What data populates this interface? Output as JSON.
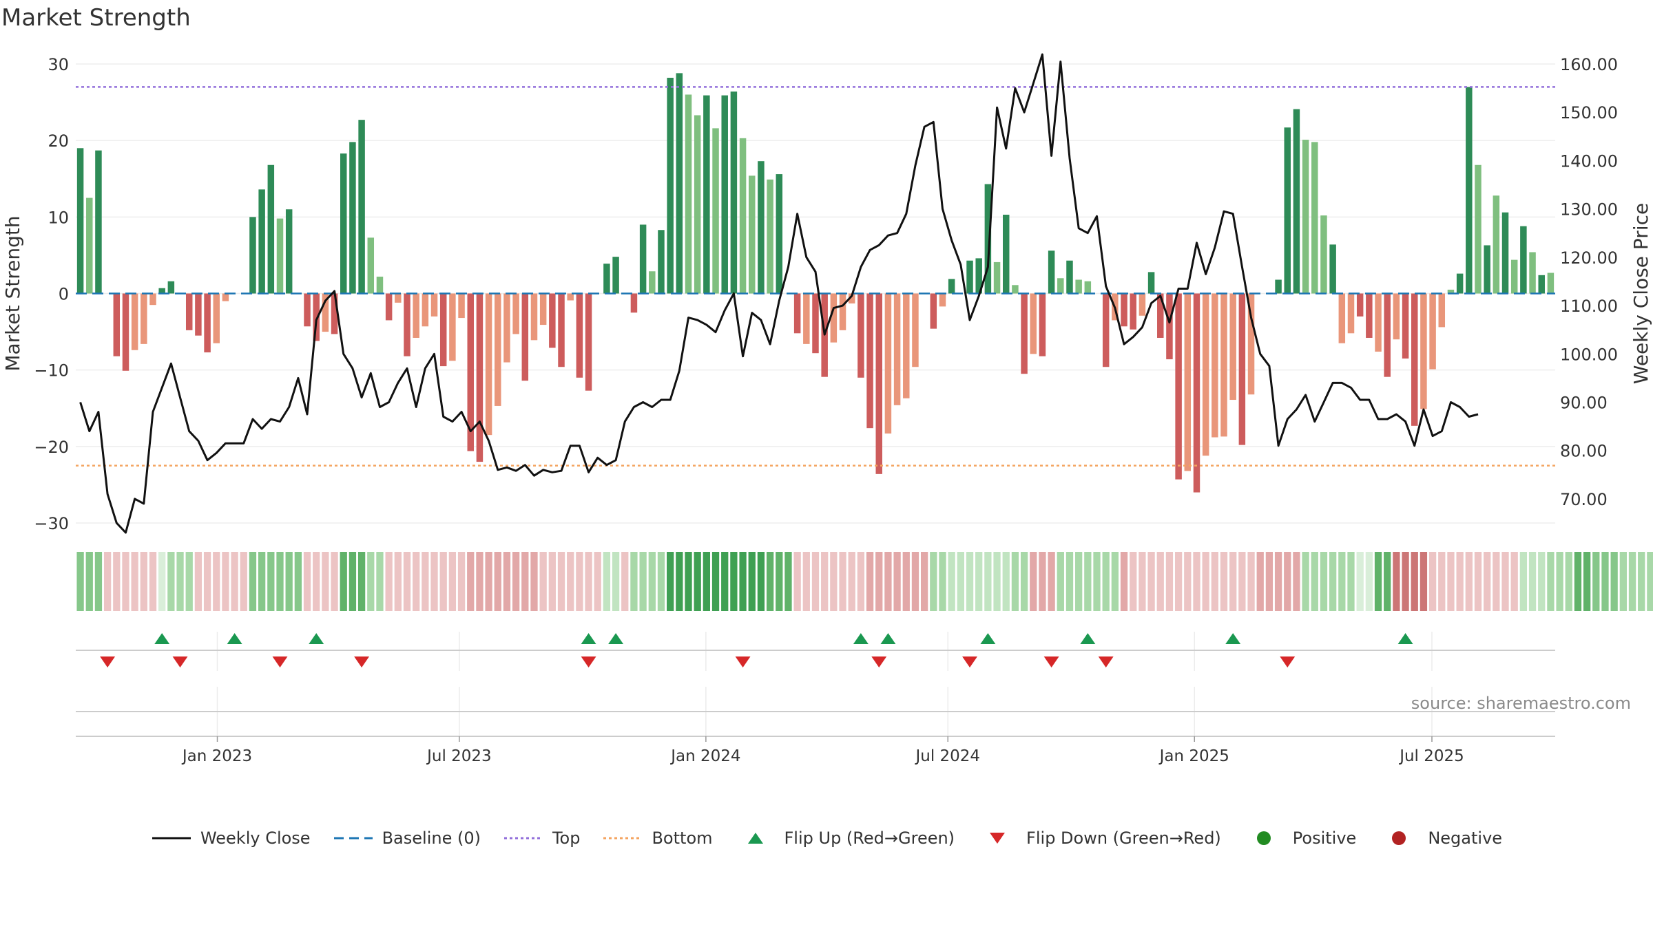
{
  "title": "Market Strength",
  "source": "source: sharemaestro.com",
  "colors": {
    "strong_green": "#2e8b57",
    "light_green": "#7fbf7f",
    "strong_red": "#cd5c5c",
    "light_red": "#e9967a",
    "line": "#111111",
    "top": "#9370db",
    "bottom": "#f4a460",
    "baseline": "#1f77b4",
    "flip_up": "#1a9850",
    "flip_down": "#d62728",
    "positive": "#228b22",
    "negative": "#b22222"
  },
  "legend": [
    {
      "key": "line",
      "label": "Weekly Close"
    },
    {
      "key": "baseline",
      "label": "Baseline (0)"
    },
    {
      "key": "top",
      "label": "Top"
    },
    {
      "key": "bottom",
      "label": "Bottom"
    },
    {
      "key": "flip_up",
      "label": "Flip Up (Red→Green)"
    },
    {
      "key": "flip_down",
      "label": "Flip Down (Green→Red)"
    },
    {
      "key": "positive",
      "label": "Positive"
    },
    {
      "key": "negative",
      "label": "Negative"
    }
  ],
  "chart_data": {
    "type": "bar",
    "title": "Market Strength",
    "xlabel": "",
    "ylabel": "Market Strength",
    "ylabel_right": "Weekly Close Price",
    "ylim": [
      -30,
      30
    ],
    "ylim_right": [
      65,
      160
    ],
    "yticks": [
      30,
      20,
      10,
      0,
      -10,
      -20,
      -30
    ],
    "yticklabels": [
      "30",
      "20",
      "10",
      "0",
      "−10",
      "−20",
      "−30"
    ],
    "yticks_right": [
      160,
      150,
      140,
      130,
      120,
      110,
      100,
      90,
      80,
      70
    ],
    "yticklabels_right": [
      "160.00",
      "150.00",
      "140.00",
      "130.00",
      "120.00",
      "110.00",
      "100.00",
      "90.00",
      "80.00",
      "70.00"
    ],
    "x_start_week": 0,
    "x_end_week": 162,
    "xticks": [
      {
        "label": "Jan 2023",
        "week": 15.5
      },
      {
        "label": "Jul 2023",
        "week": 42
      },
      {
        "label": "Jan 2024",
        "week": 69
      },
      {
        "label": "Jul 2024",
        "week": 95.5
      },
      {
        "label": "Jan 2025",
        "week": 122.5
      },
      {
        "label": "Jul 2025",
        "week": 148.5
      }
    ],
    "top_line": 27,
    "bottom_line": -22.5,
    "baseline": 0,
    "strength": [
      19,
      12.5,
      18.7,
      0,
      -8.2,
      -10.1,
      -7.4,
      -6.6,
      -1.5,
      0.7,
      1.6,
      0,
      -4.8,
      -5.5,
      -7.7,
      -6.5,
      -1,
      0,
      0,
      10,
      13.6,
      16.8,
      9.8,
      11,
      0,
      -4.3,
      -6.2,
      -5,
      -5.3,
      18.3,
      19.8,
      22.7,
      7.3,
      2.2,
      -3.5,
      -1.2,
      -8.2,
      -5.8,
      -4.3,
      -3,
      -9.5,
      -8.8,
      -3.2,
      -20.6,
      -22,
      -18.5,
      -14.7,
      -9,
      -5.3,
      -11.4,
      -6.1,
      -4.1,
      -7.1,
      -9.6,
      -0.9,
      -11,
      -12.7,
      0,
      3.9,
      4.8,
      0,
      -2.5,
      9,
      2.9,
      8.3,
      28.2,
      28.8,
      26,
      23.3,
      25.9,
      21.6,
      25.9,
      26.4,
      20.3,
      15.4,
      17.3,
      14.9,
      15.6,
      0,
      -5.2,
      -6.6,
      -7.8,
      -10.9,
      -6.4,
      -4.8,
      -1.3,
      -11,
      -17.6,
      -23.6,
      -18.3,
      -14.6,
      -13.7,
      -9.6,
      0,
      -4.6,
      -1.7,
      1.9,
      0,
      4.3,
      4.6,
      14.3,
      4.1,
      10.3,
      1.1,
      -10.5,
      -7.9,
      -8.2,
      5.6,
      2,
      4.3,
      1.8,
      1.6,
      0,
      -9.6,
      -3.5,
      -4.3,
      -4.7,
      -2.9,
      2.8,
      -5.8,
      -8.6,
      -24.3,
      -23.2,
      -26,
      -21.2,
      -18.8,
      -18.7,
      -13.9,
      -19.8,
      -13.2,
      0,
      0,
      1.8,
      21.7,
      24.1,
      20.1,
      19.8,
      10.2,
      6.4,
      -6.5,
      -5.2,
      -3,
      -5.8,
      -7.6,
      -10.9,
      -6,
      -8.5,
      -17.3,
      -15.1,
      -9.9,
      -4.4,
      0.5,
      2.6,
      27,
      16.8,
      6.3,
      12.8,
      10.6,
      4.4,
      8.8,
      5.4,
      2.4,
      2.7
    ],
    "strength_shade": [
      1,
      0,
      1,
      0,
      1,
      1,
      0,
      0,
      0,
      1,
      1,
      0,
      1,
      1,
      1,
      0,
      0,
      0,
      0,
      1,
      1,
      1,
      0,
      1,
      0,
      1,
      1,
      0,
      1,
      1,
      1,
      1,
      0,
      0,
      1,
      0,
      1,
      0,
      0,
      0,
      1,
      0,
      0,
      1,
      1,
      0,
      0,
      0,
      0,
      1,
      0,
      0,
      1,
      1,
      0,
      1,
      1,
      0,
      1,
      1,
      0,
      1,
      1,
      0,
      1,
      1,
      1,
      0,
      0,
      1,
      0,
      1,
      1,
      0,
      0,
      1,
      0,
      1,
      0,
      1,
      0,
      1,
      1,
      0,
      0,
      0,
      1,
      1,
      1,
      0,
      0,
      0,
      0,
      0,
      1,
      0,
      1,
      0,
      1,
      1,
      1,
      0,
      1,
      0,
      1,
      0,
      1,
      1,
      0,
      1,
      0,
      0,
      0,
      1,
      0,
      1,
      1,
      0,
      1,
      1,
      1,
      1,
      0,
      1,
      0,
      0,
      0,
      0,
      1,
      0,
      0,
      0,
      1,
      1,
      1,
      0,
      0,
      0,
      1,
      0,
      0,
      1,
      1,
      0,
      1,
      0,
      1,
      1,
      0,
      0,
      0,
      0,
      1,
      1,
      0,
      1,
      0,
      1,
      0,
      1,
      0,
      1
    ],
    "strip_intensity": [
      3,
      3,
      3,
      1,
      1,
      1,
      1,
      1,
      1,
      0,
      2,
      2,
      2,
      1,
      1,
      1,
      1,
      1,
      1,
      3,
      3,
      3,
      3,
      3,
      3,
      1,
      1,
      1,
      1,
      4,
      4,
      4,
      2,
      2,
      1,
      1,
      1,
      1,
      1,
      1,
      1,
      1,
      1,
      2,
      2,
      2,
      2,
      2,
      2,
      2,
      2,
      1,
      1,
      1,
      1,
      1,
      1,
      1,
      1,
      1,
      1,
      2,
      2,
      2,
      2,
      5,
      5,
      5,
      5,
      5,
      5,
      5,
      5,
      5,
      5,
      5,
      4,
      4,
      4,
      1,
      1,
      1,
      1,
      1,
      1,
      1,
      1,
      2,
      2,
      2,
      2,
      2,
      2,
      2,
      2,
      2,
      1,
      1,
      1,
      1,
      1,
      1,
      1,
      2,
      2,
      2,
      2,
      2,
      2,
      2,
      2,
      2,
      2,
      2,
      2,
      2,
      1,
      1,
      1,
      1,
      1,
      1,
      1,
      1,
      1,
      1,
      1,
      1,
      1,
      1,
      2,
      2,
      2,
      2,
      2,
      2,
      2,
      2,
      2,
      2,
      2,
      0,
      0,
      4,
      4,
      4,
      4,
      4,
      4,
      1,
      1,
      1,
      1,
      1,
      1,
      1,
      1,
      1,
      1,
      1,
      1,
      1,
      2,
      2,
      2,
      4,
      4,
      3,
      3,
      3,
      2,
      2,
      2,
      2,
      2
    ],
    "strip_sign": [
      1,
      1,
      1,
      -1,
      -1,
      -1,
      -1,
      -1,
      -1,
      1,
      1,
      1,
      1,
      -1,
      -1,
      -1,
      -1,
      -1,
      -1,
      1,
      1,
      1,
      1,
      1,
      1,
      -1,
      -1,
      -1,
      -1,
      1,
      1,
      1,
      1,
      1,
      -1,
      -1,
      -1,
      -1,
      -1,
      -1,
      -1,
      -1,
      -1,
      -1,
      -1,
      -1,
      -1,
      -1,
      -1,
      -1,
      -1,
      -1,
      -1,
      -1,
      -1,
      -1,
      -1,
      -1,
      1,
      1,
      -1,
      1,
      1,
      1,
      1,
      1,
      1,
      1,
      1,
      1,
      1,
      1,
      1,
      1,
      1,
      1,
      1,
      1,
      1,
      -1,
      -1,
      -1,
      -1,
      -1,
      -1,
      -1,
      -1,
      -1,
      -1,
      -1,
      -1,
      -1,
      -1,
      -1,
      1,
      1,
      1,
      1,
      1,
      1,
      1,
      1,
      1,
      1,
      1,
      -1,
      -1,
      -1,
      1,
      1,
      1,
      1,
      1,
      1,
      1,
      -1,
      -1,
      -1,
      -1,
      -1,
      -1,
      -1,
      -1,
      -1,
      -1,
      -1,
      -1,
      -1,
      -1,
      -1,
      -1,
      -1,
      -1,
      -1,
      -1,
      1,
      1,
      1,
      1,
      1,
      1,
      1,
      1,
      1,
      1,
      -1,
      -1,
      -1,
      -1,
      -1,
      -1,
      -1,
      -1,
      -1,
      -1,
      -1,
      -1,
      -1,
      -1,
      1,
      1,
      1,
      1,
      1,
      1,
      1,
      1,
      1,
      1,
      1,
      1,
      1,
      1,
      1,
      1,
      1
    ],
    "weekly_close": [
      90,
      84,
      88,
      71,
      65,
      63,
      70,
      69,
      88,
      93,
      98,
      91,
      84,
      82,
      78,
      79.5,
      81.5,
      81.5,
      81.5,
      86.5,
      84.5,
      86.5,
      86,
      89,
      95,
      87.5,
      107,
      111,
      113,
      100,
      97,
      91,
      96,
      89,
      90,
      94,
      97,
      89,
      97,
      100,
      87,
      86,
      88,
      84,
      86,
      82,
      76,
      76.5,
      75.8,
      77,
      74.8,
      76,
      75.5,
      75.8,
      81,
      81,
      75.5,
      78.5,
      77,
      78,
      86,
      89,
      90,
      89,
      90.5,
      90.5,
      96.5,
      107.5,
      107,
      106,
      104.5,
      109,
      112.5,
      99.5,
      108.5,
      107,
      102,
      111,
      118,
      129,
      120,
      117,
      104,
      109.5,
      110,
      112,
      118,
      121.5,
      122.5,
      124.5,
      125,
      129,
      139,
      147,
      148,
      130,
      123.5,
      118.5,
      107,
      112,
      118,
      151,
      142.5,
      155,
      150,
      156,
      162,
      141,
      160.5,
      140.5,
      126,
      125,
      128.5,
      114,
      109.5,
      102,
      103.5,
      105.5,
      110.5,
      112,
      106.5,
      113.5,
      113.5,
      123,
      116.5,
      122,
      129.5,
      129,
      118,
      107.5,
      100,
      97.5,
      81,
      86.5,
      88.5,
      91.5,
      86,
      90,
      94,
      94,
      93,
      90.5,
      90.5,
      86.5,
      86.5,
      87.5,
      86,
      81,
      88.5,
      83,
      84,
      90,
      89,
      87,
      87.5
    ],
    "flip_up_weeks": [
      9,
      17,
      26,
      56,
      59,
      86,
      89,
      100,
      111,
      127,
      146
    ],
    "flip_down_weeks": [
      3,
      11,
      22,
      31,
      56,
      73,
      88,
      98,
      107,
      113,
      133
    ]
  }
}
